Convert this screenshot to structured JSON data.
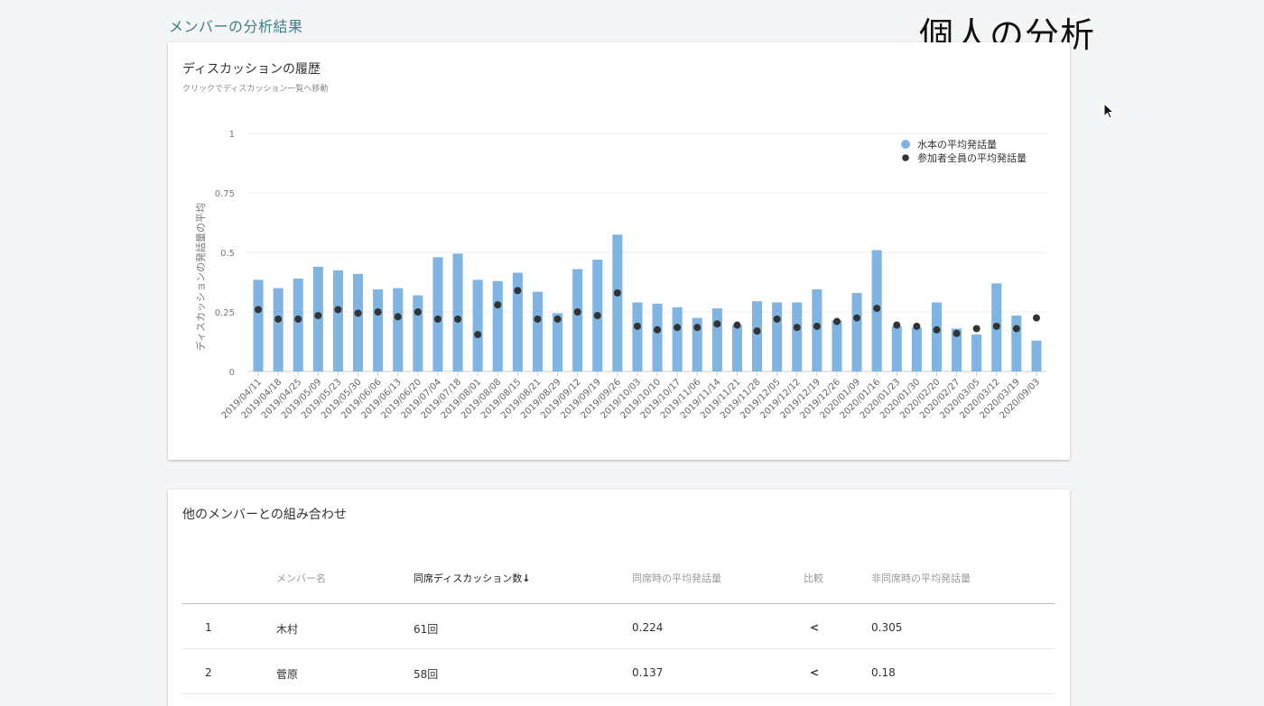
{
  "page": {
    "title": "メンバーの分析結果",
    "overlay_title": "個人の分析"
  },
  "history_card": {
    "title": "ディスカッションの履歴",
    "subtitle": "クリックでディスカッション一覧へ移動"
  },
  "colors": {
    "bar": "#7fb4e3",
    "dot": "#333333",
    "title": "#3f7f88"
  },
  "chart_data": {
    "type": "bar",
    "ylabel": "ディスカッションの発話量の平均",
    "ylim": [
      0,
      1
    ],
    "yticks": [
      "0",
      "0.25",
      "0.5",
      "0.75",
      "1"
    ],
    "legend_position": "top-right",
    "categories": [
      "2019/04/11",
      "2019/04/18",
      "2019/04/25",
      "2019/05/09",
      "2019/05/23",
      "2019/05/30",
      "2019/06/06",
      "2019/06/13",
      "2019/06/20",
      "2019/07/04",
      "2019/07/18",
      "2019/08/01",
      "2019/08/08",
      "2019/08/15",
      "2019/08/21",
      "2019/08/29",
      "2019/09/12",
      "2019/09/19",
      "2019/09/26",
      "2019/10/03",
      "2019/10/10",
      "2019/10/17",
      "2019/11/06",
      "2019/11/14",
      "2019/11/21",
      "2019/11/28",
      "2019/12/05",
      "2019/12/12",
      "2019/12/19",
      "2019/12/26",
      "2020/01/09",
      "2020/01/16",
      "2020/01/23",
      "2020/01/30",
      "2020/02/20",
      "2020/02/27",
      "2020/03/05",
      "2020/03/12",
      "2020/03/19",
      "2020/09/03"
    ],
    "series": [
      {
        "name": "水本の平均発話量",
        "kind": "bar",
        "values": [
          0.385,
          0.35,
          0.39,
          0.44,
          0.425,
          0.41,
          0.345,
          0.35,
          0.32,
          0.48,
          0.495,
          0.385,
          0.38,
          0.415,
          0.335,
          0.245,
          0.43,
          0.47,
          0.575,
          0.29,
          0.285,
          0.27,
          0.225,
          0.265,
          0.195,
          0.295,
          0.29,
          0.29,
          0.345,
          0.215,
          0.33,
          0.51,
          0.19,
          0.185,
          0.29,
          0.18,
          0.155,
          0.37,
          0.235,
          0.13
        ]
      },
      {
        "name": "参加者全員の平均発話量",
        "kind": "dot",
        "values": [
          0.26,
          0.22,
          0.22,
          0.235,
          0.26,
          0.245,
          0.25,
          0.23,
          0.25,
          0.22,
          0.22,
          0.155,
          0.28,
          0.34,
          0.22,
          0.22,
          0.25,
          0.235,
          0.33,
          0.19,
          0.175,
          0.185,
          0.185,
          0.2,
          0.195,
          0.17,
          0.22,
          0.185,
          0.19,
          0.21,
          0.225,
          0.265,
          0.195,
          0.19,
          0.175,
          0.16,
          0.18,
          0.19,
          0.18,
          0.225
        ]
      }
    ]
  },
  "combo_card": {
    "title": "他のメンバーとの組み合わせ",
    "columns": {
      "name": "メンバー名",
      "count": "同席ディスカッション数",
      "avg_with": "同席時の平均発話量",
      "compare": "比較",
      "avg_without": "非同席時の平均発話量"
    },
    "sort_indicator": "↓",
    "rows": [
      {
        "rank": "1",
        "name": "木村",
        "count": "61回",
        "avg_with": "0.224",
        "compare": "<",
        "avg_without": "0.305"
      },
      {
        "rank": "2",
        "name": "菅原",
        "count": "58回",
        "avg_with": "0.137",
        "compare": "<",
        "avg_without": "0.18"
      }
    ]
  }
}
